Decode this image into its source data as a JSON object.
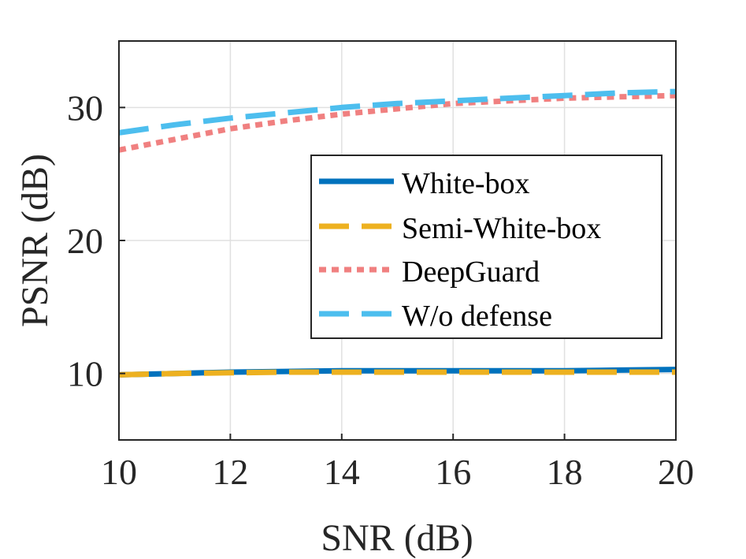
{
  "chart_data": {
    "type": "line",
    "title": "",
    "xlabel": "SNR (dB)",
    "ylabel": "PSNR (dB)",
    "xlim": [
      10,
      20
    ],
    "ylim": [
      5,
      35
    ],
    "xticks": [
      10,
      12,
      14,
      16,
      18,
      20
    ],
    "yticks": [
      10,
      20,
      30
    ],
    "grid": true,
    "legend_position": "right-middle",
    "series": [
      {
        "name": "White-box",
        "color": "#0072BD",
        "style": "solid",
        "x": [
          10,
          11,
          12,
          13,
          14,
          15,
          16,
          17,
          18,
          19,
          20
        ],
        "y": [
          9.9,
          10.0,
          10.1,
          10.15,
          10.2,
          10.2,
          10.2,
          10.2,
          10.2,
          10.25,
          10.3
        ]
      },
      {
        "name": "Semi-White-box",
        "color": "#EDB120",
        "style": "dashed",
        "x": [
          10,
          11,
          12,
          13,
          14,
          15,
          16,
          17,
          18,
          19,
          20
        ],
        "y": [
          9.9,
          10.0,
          10.05,
          10.1,
          10.1,
          10.1,
          10.1,
          10.1,
          10.1,
          10.1,
          10.1
        ]
      },
      {
        "name": "DeepGuard",
        "color": "#F08080",
        "style": "dotted",
        "x": [
          10,
          11,
          12,
          13,
          14,
          15,
          16,
          17,
          18,
          19,
          20
        ],
        "y": [
          26.8,
          27.6,
          28.4,
          29.0,
          29.5,
          29.9,
          30.3,
          30.5,
          30.7,
          30.8,
          30.9
        ]
      },
      {
        "name": "W/o defense",
        "color": "#4DBEEE",
        "style": "dashed",
        "x": [
          10,
          11,
          12,
          13,
          14,
          15,
          16,
          17,
          18,
          19,
          20
        ],
        "y": [
          28.1,
          28.7,
          29.2,
          29.6,
          30.0,
          30.3,
          30.5,
          30.7,
          30.9,
          31.1,
          31.2
        ]
      }
    ]
  }
}
